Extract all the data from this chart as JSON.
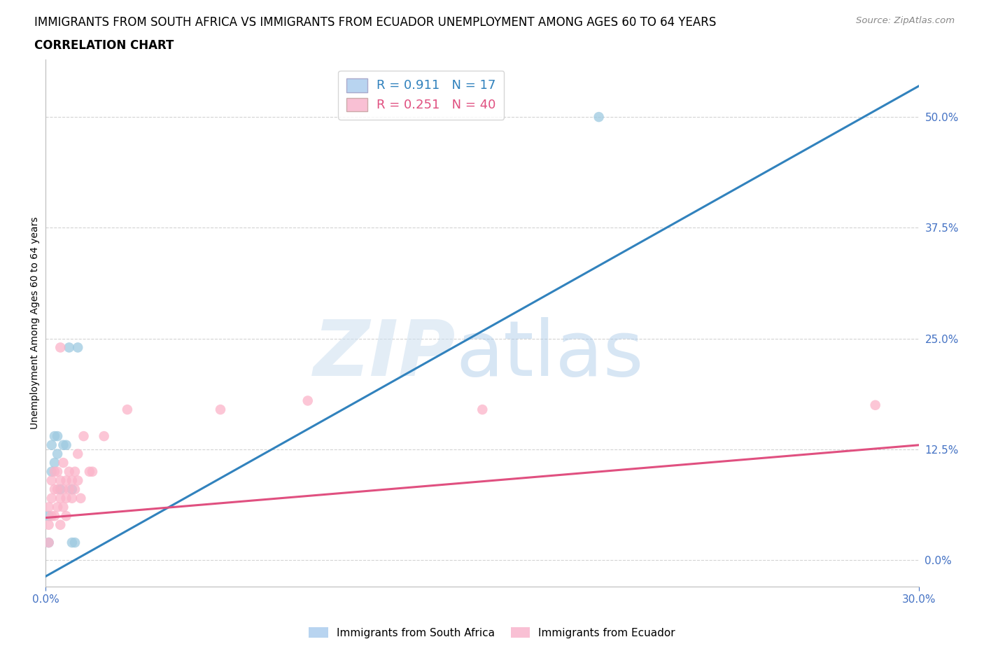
{
  "title_line1": "IMMIGRANTS FROM SOUTH AFRICA VS IMMIGRANTS FROM ECUADOR UNEMPLOYMENT AMONG AGES 60 TO 64 YEARS",
  "title_line2": "CORRELATION CHART",
  "source_text": "Source: ZipAtlas.com",
  "ylabel": "Unemployment Among Ages 60 to 64 years",
  "south_africa": {
    "label": "Immigrants from South Africa",
    "marker_color": "#9ecae1",
    "line_color": "#3182bd",
    "R": 0.911,
    "N": 17,
    "x": [
      0.001,
      0.001,
      0.002,
      0.002,
      0.003,
      0.003,
      0.004,
      0.004,
      0.005,
      0.006,
      0.007,
      0.008,
      0.009,
      0.009,
      0.01,
      0.011,
      0.19
    ],
    "y": [
      0.02,
      0.05,
      0.1,
      0.13,
      0.11,
      0.14,
      0.12,
      0.14,
      0.08,
      0.13,
      0.13,
      0.24,
      0.02,
      0.08,
      0.02,
      0.24,
      0.5
    ]
  },
  "ecuador": {
    "label": "Immigrants from Ecuador",
    "marker_color": "#fbb4c9",
    "line_color": "#e05080",
    "R": 0.251,
    "N": 40,
    "x": [
      0.001,
      0.001,
      0.001,
      0.002,
      0.002,
      0.002,
      0.003,
      0.003,
      0.003,
      0.004,
      0.004,
      0.004,
      0.005,
      0.005,
      0.005,
      0.005,
      0.006,
      0.006,
      0.006,
      0.007,
      0.007,
      0.007,
      0.008,
      0.008,
      0.009,
      0.009,
      0.01,
      0.01,
      0.011,
      0.011,
      0.012,
      0.013,
      0.015,
      0.016,
      0.02,
      0.028,
      0.06,
      0.09,
      0.15,
      0.285
    ],
    "y": [
      0.02,
      0.04,
      0.06,
      0.05,
      0.07,
      0.09,
      0.05,
      0.08,
      0.1,
      0.06,
      0.08,
      0.1,
      0.04,
      0.07,
      0.09,
      0.24,
      0.06,
      0.08,
      0.11,
      0.07,
      0.09,
      0.05,
      0.08,
      0.1,
      0.07,
      0.09,
      0.08,
      0.1,
      0.09,
      0.12,
      0.07,
      0.14,
      0.1,
      0.1,
      0.14,
      0.17,
      0.17,
      0.18,
      0.17,
      0.175
    ]
  },
  "sa_line": {
    "x0": 0.0,
    "y0": -0.018,
    "x1": 0.3,
    "y1": 0.535
  },
  "ec_line": {
    "x0": 0.0,
    "y0": 0.048,
    "x1": 0.3,
    "y1": 0.13
  },
  "xlim": [
    0.0,
    0.3
  ],
  "ylim": [
    -0.03,
    0.565
  ],
  "yticks": [
    0.0,
    0.125,
    0.25,
    0.375,
    0.5
  ],
  "xtick_positions": [
    0.0,
    0.3
  ],
  "grid_color": "#c8c8c8",
  "background_color": "#ffffff",
  "title_fontsize": 12,
  "axis_label_color": "#4472c4",
  "source_color": "#888888",
  "legend_patch_sa": "#b8d4f0",
  "legend_patch_ec": "#f9c0d4"
}
